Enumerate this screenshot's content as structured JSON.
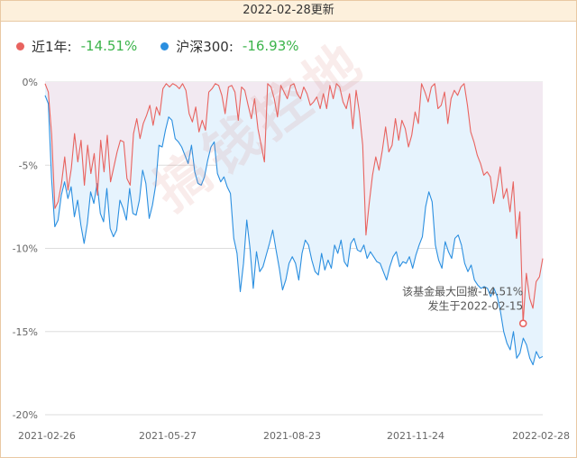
{
  "header": {
    "title": "2022-02-28更新"
  },
  "legend": {
    "series1_name": "近1年:",
    "series1_value": "-14.51%",
    "series2_name": "沪深300:",
    "series2_value": "-16.93%"
  },
  "watermark": "搞钱控地",
  "annotation": {
    "line1": "该基金最大回撤-14.51%",
    "line2": "发生于2022-02-15",
    "date": "2022-02-15",
    "value": -14.51
  },
  "colors": {
    "fund": "#e8635f",
    "index": "#2b8fe0",
    "fund_fill": "#f3e6ee",
    "index_fill": "#e6f3fd",
    "positive_text": "#3cb44b"
  },
  "chart_data": {
    "type": "line",
    "title": "",
    "xlabel": "",
    "ylabel": "",
    "ylim": [
      -20,
      0
    ],
    "yticks": [
      0,
      -5,
      -10,
      -15,
      -20
    ],
    "ytick_labels": [
      "0%",
      "-5%",
      "-10%",
      "-15%",
      "-20%"
    ],
    "xtick_labels": [
      "2021-02-26",
      "2021-05-27",
      "2021-08-23",
      "2021-11-24",
      "2022-02-28"
    ],
    "grid": true,
    "legend_position": "top-left",
    "series": [
      {
        "name": "近1年",
        "kind": "drawdown",
        "values": [
          -0.1,
          -0.6,
          -3.2,
          -7.6,
          -7.2,
          -6.1,
          -4.5,
          -6.5,
          -5.2,
          -3.1,
          -4.8,
          -3.5,
          -6.2,
          -3.8,
          -5.5,
          -4.3,
          -6.8,
          -3.5,
          -5.4,
          -3.2,
          -6.0,
          -5.1,
          -4.2,
          -3.5,
          -3.6,
          -5.8,
          -6.2,
          -3.1,
          -2.2,
          -3.4,
          -2.5,
          -2.0,
          -1.4,
          -2.6,
          -1.5,
          -2.0,
          -0.4,
          -0.1,
          -0.3,
          -0.1,
          -0.2,
          -0.4,
          -0.1,
          -0.5,
          -1.9,
          -2.4,
          -1.5,
          -3.0,
          -2.3,
          -2.9,
          -0.6,
          -0.4,
          -0.1,
          -0.2,
          -0.8,
          -1.9,
          -0.3,
          -0.2,
          -0.6,
          -2.3,
          -0.3,
          -0.5,
          -1.4,
          -2.2,
          -1.0,
          -2.8,
          -3.8,
          -4.8,
          -0.1,
          -0.3,
          -1.0,
          -2.1,
          -0.2,
          -0.6,
          -1.0,
          -0.2,
          -0.1,
          -0.7,
          -1.0,
          -0.3,
          -0.7,
          -1.4,
          -1.2,
          -0.9,
          -1.6,
          -0.7,
          -1.6,
          -0.2,
          -1.0,
          -0.1,
          -0.3,
          -1.2,
          -1.6,
          -0.7,
          -2.8,
          -0.5,
          -1.8,
          -3.8,
          -9.2,
          -7.3,
          -5.6,
          -4.5,
          -5.3,
          -4.1,
          -2.7,
          -4.2,
          -3.8,
          -2.2,
          -3.5,
          -2.3,
          -2.8,
          -3.9,
          -3.2,
          -1.8,
          -2.5,
          -0.1,
          -0.6,
          -1.2,
          -0.3,
          -0.1,
          -1.6,
          -1.4,
          -0.6,
          -2.5,
          -1.0,
          -0.5,
          -0.8,
          -0.3,
          -0.1,
          -1.4,
          -3.0,
          -3.6,
          -4.4,
          -4.9,
          -5.6,
          -5.4,
          -5.7,
          -7.3,
          -6.3,
          -5.1,
          -7.0,
          -6.4,
          -7.8,
          -6.0,
          -9.4,
          -7.8,
          -14.51,
          -11.5,
          -13.0,
          -13.6,
          -12.0,
          -11.7,
          -10.6
        ]
      },
      {
        "name": "沪深300",
        "kind": "cumulative",
        "values": [
          -0.8,
          -1.3,
          -5.8,
          -8.7,
          -8.3,
          -6.8,
          -6.0,
          -7.0,
          -6.3,
          -8.1,
          -7.1,
          -8.6,
          -9.7,
          -8.5,
          -6.6,
          -7.3,
          -6.1,
          -7.9,
          -8.4,
          -6.4,
          -8.8,
          -9.3,
          -8.9,
          -7.1,
          -7.6,
          -8.3,
          -6.4,
          -7.9,
          -8.0,
          -7.1,
          -5.3,
          -6.1,
          -8.2,
          -7.4,
          -6.2,
          -3.8,
          -3.9,
          -2.9,
          -2.1,
          -2.3,
          -3.4,
          -3.6,
          -3.9,
          -4.4,
          -4.9,
          -3.8,
          -5.4,
          -6.1,
          -6.2,
          -5.7,
          -4.7,
          -3.9,
          -3.6,
          -5.5,
          -6.0,
          -5.7,
          -6.3,
          -6.7,
          -9.4,
          -10.3,
          -12.6,
          -10.9,
          -8.3,
          -10.0,
          -12.4,
          -10.2,
          -11.4,
          -11.1,
          -10.4,
          -9.7,
          -8.9,
          -10.1,
          -11.2,
          -12.5,
          -11.9,
          -10.9,
          -10.5,
          -10.9,
          -11.9,
          -10.3,
          -9.5,
          -9.8,
          -10.7,
          -11.4,
          -11.6,
          -10.3,
          -11.3,
          -10.7,
          -11.2,
          -9.8,
          -10.3,
          -9.5,
          -10.8,
          -11.1,
          -9.7,
          -9.4,
          -10.1,
          -10.2,
          -9.8,
          -10.6,
          -10.2,
          -10.5,
          -10.8,
          -10.9,
          -11.4,
          -11.9,
          -11.1,
          -10.5,
          -10.2,
          -11.1,
          -10.8,
          -10.9,
          -10.5,
          -11.2,
          -10.4,
          -9.8,
          -9.3,
          -7.5,
          -6.6,
          -7.2,
          -9.8,
          -10.7,
          -11.2,
          -9.6,
          -10.2,
          -10.6,
          -9.4,
          -9.2,
          -9.8,
          -10.9,
          -11.4,
          -11.0,
          -11.9,
          -12.2,
          -12.4,
          -12.3,
          -12.4,
          -12.9,
          -12.4,
          -12.9,
          -13.8,
          -15.0,
          -15.7,
          -16.1,
          -15.0,
          -16.6,
          -16.3,
          -15.4,
          -15.8,
          -16.6,
          -17.0,
          -16.2,
          -16.6,
          -16.5
        ]
      }
    ]
  }
}
